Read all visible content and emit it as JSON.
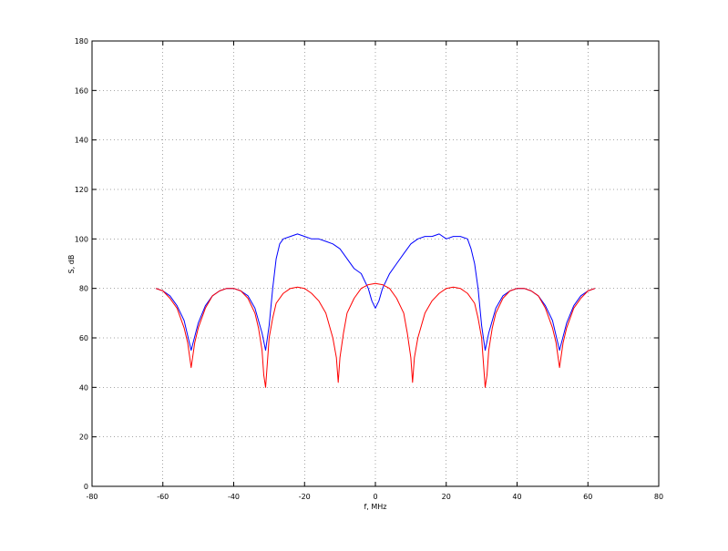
{
  "chart_data": {
    "type": "line",
    "title": "",
    "xlabel": "f, MHz",
    "ylabel": "S, dB",
    "xlim": [
      -80,
      80
    ],
    "ylim": [
      0,
      180
    ],
    "xticks": [
      -80,
      -60,
      -40,
      -20,
      0,
      20,
      40,
      60,
      80
    ],
    "yticks": [
      0,
      20,
      40,
      60,
      80,
      100,
      120,
      140,
      160,
      180
    ],
    "grid": true,
    "legend": "none",
    "colors": {
      "blue_series": "#0000ff",
      "red_series": "#ff0000"
    },
    "series": [
      {
        "color": "#0000ff",
        "x": [
          -62,
          -60,
          -58,
          -56,
          -54,
          -52,
          -50,
          -48,
          -46,
          -44,
          -42,
          -40,
          -38,
          -36,
          -34,
          -32,
          -31,
          -30,
          -29,
          -28,
          -27,
          -26,
          -24,
          -22,
          -20,
          -18,
          -16,
          -14,
          -12,
          -10,
          -8,
          -6,
          -4,
          -2,
          -1,
          0,
          1,
          2,
          4,
          6,
          8,
          10,
          12,
          14,
          16,
          18,
          20,
          22,
          24,
          26,
          27,
          28,
          29,
          30,
          31,
          32,
          34,
          36,
          38,
          40,
          42,
          44,
          46,
          48,
          50,
          52,
          54,
          56,
          58,
          60,
          62
        ],
        "y": [
          80,
          79,
          77,
          73,
          67,
          55,
          66,
          73,
          77,
          79,
          80,
          80,
          79,
          77,
          72,
          62,
          55,
          65,
          80,
          92,
          98,
          100,
          101,
          102,
          101,
          100,
          100,
          99,
          98,
          96,
          92,
          88,
          86,
          80,
          75,
          72,
          75,
          80,
          86,
          90,
          94,
          98,
          100,
          101,
          101,
          102,
          100,
          101,
          101,
          100,
          96,
          90,
          80,
          65,
          55,
          62,
          72,
          77,
          79,
          80,
          80,
          79,
          77,
          73,
          67,
          55,
          66,
          73,
          77,
          79,
          80
        ]
      },
      {
        "color": "#ff0000",
        "x": [
          -62,
          -60,
          -58,
          -56,
          -54,
          -53,
          -52,
          -51,
          -50,
          -48,
          -46,
          -44,
          -42,
          -40,
          -38,
          -36,
          -34,
          -33,
          -32,
          -31.5,
          -31,
          -30,
          -29,
          -28,
          -26,
          -24,
          -22,
          -20,
          -18,
          -16,
          -14,
          -12,
          -11,
          -10.5,
          -10,
          -9,
          -8,
          -6,
          -4,
          -2,
          0,
          2,
          4,
          6,
          8,
          9,
          10,
          10.5,
          11,
          12,
          14,
          16,
          18,
          20,
          22,
          24,
          26,
          28,
          29,
          30,
          31,
          31.5,
          32,
          33,
          34,
          36,
          38,
          40,
          42,
          44,
          46,
          48,
          50,
          51,
          52,
          53,
          54,
          56,
          58,
          60,
          62
        ],
        "y": [
          80,
          79,
          76,
          72,
          64,
          58,
          48,
          58,
          64,
          72,
          77,
          79,
          80,
          80,
          79,
          76,
          70,
          64,
          55,
          45,
          40,
          60,
          68,
          74,
          78,
          80,
          80.5,
          80,
          78,
          75,
          70,
          60,
          52,
          42,
          52,
          62,
          70,
          76,
          80,
          81.5,
          82,
          81.5,
          80,
          76,
          70,
          62,
          52,
          42,
          52,
          60,
          70,
          75,
          78,
          80,
          80.5,
          80,
          78,
          74,
          68,
          60,
          40,
          45,
          55,
          64,
          70,
          76,
          79,
          80,
          80,
          79,
          77,
          72,
          64,
          58,
          48,
          58,
          64,
          72,
          76,
          79,
          80
        ]
      }
    ]
  }
}
